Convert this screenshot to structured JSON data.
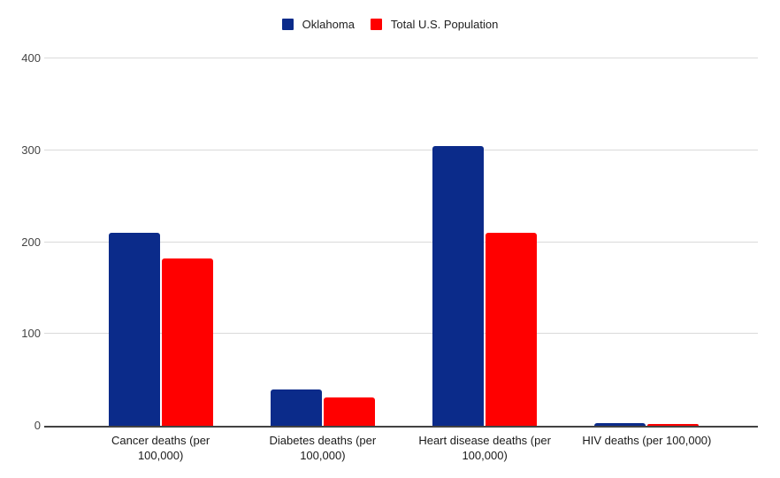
{
  "chart_data": {
    "type": "bar",
    "title": "",
    "categories": [
      "Cancer deaths (per 100,000)",
      "Diabetes deaths (per 100,000)",
      "Heart disease deaths (per 100,000)",
      "HIV deaths (per 100,000)"
    ],
    "series": [
      {
        "name": "Oklahoma",
        "color": "#0b2b8a",
        "values": [
          210,
          40,
          305,
          2.5
        ]
      },
      {
        "name": "Total U.S. Population",
        "color": "#ff0000",
        "values": [
          182,
          31,
          210,
          2
        ]
      }
    ],
    "xlabel": "",
    "ylabel": "",
    "ylim": [
      0,
      400
    ],
    "yticks": [
      0,
      100,
      200,
      300,
      400
    ],
    "grid": true,
    "legend_position": "top"
  },
  "colors": {
    "background": "#ffffff",
    "gridline": "#dadada",
    "axis_line": "#424242",
    "tick_text": "#444444",
    "label_text": "#1a1a1a",
    "legend_text": "#212121"
  }
}
